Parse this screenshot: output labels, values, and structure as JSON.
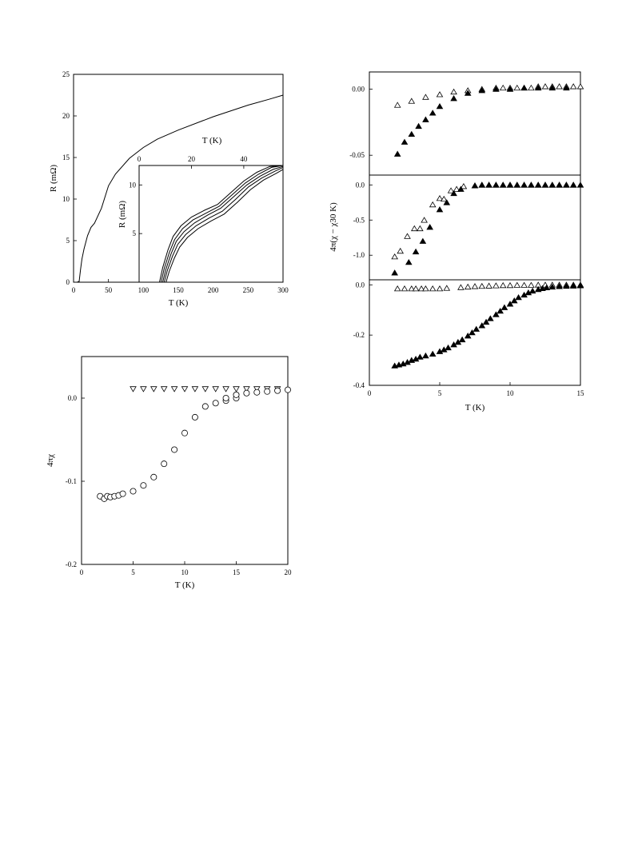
{
  "colors": {
    "ink": "#000000",
    "background": "#ffffff"
  },
  "chart_data": [
    {
      "id": "resistance",
      "type": "line",
      "xlabel": "T (K)",
      "ylabel": "R (mΩ)",
      "xlim": [
        0,
        300
      ],
      "ylim": [
        0,
        25
      ],
      "xticks": [
        0,
        50,
        100,
        150,
        200,
        250,
        300
      ],
      "yticks": [
        0,
        5,
        10,
        15,
        20,
        25
      ],
      "grid": false,
      "series": [
        {
          "x": [
            0,
            5,
            8,
            10,
            12,
            15,
            20,
            25,
            30,
            40,
            50,
            60,
            80,
            100,
            120,
            150,
            200,
            250,
            280,
            300
          ],
          "y": [
            0,
            0,
            0.1,
            1.5,
            2.8,
            4.0,
            5.6,
            6.6,
            7.1,
            8.9,
            11.6,
            13.0,
            14.9,
            16.2,
            17.2,
            18.3,
            19.9,
            21.3,
            22.0,
            22.5
          ]
        }
      ],
      "inset": {
        "type": "line",
        "xlabel": "T (K)",
        "ylabel": "R (mΩ)",
        "xlim": [
          0,
          55
        ],
        "ylim": [
          0,
          12
        ],
        "xticks": [
          0,
          20,
          40
        ],
        "yticks": [
          5,
          10
        ],
        "xaxis_position": "top",
        "series": [
          {
            "x": [
              7.8,
              9,
              11,
              13,
              16,
              20,
              25,
              30,
              35,
              40,
              45,
              50,
              55
            ],
            "y": [
              0,
              1.5,
              3.3,
              4.7,
              5.8,
              6.7,
              7.4,
              8.0,
              9.2,
              10.4,
              11.3,
              11.9,
              12.0
            ]
          },
          {
            "x": [
              8.4,
              9.6,
              11.6,
              13.6,
              16.6,
              20.6,
              25.6,
              30.6,
              35.6,
              40.6,
              45.6,
              50.6,
              55
            ],
            "y": [
              0,
              1.4,
              3.1,
              4.4,
              5.5,
              6.4,
              7.1,
              7.8,
              9.0,
              10.2,
              11.1,
              11.8,
              12.0
            ]
          },
          {
            "x": [
              9.0,
              10.2,
              12.2,
              14.2,
              17.2,
              21.2,
              26.2,
              31.2,
              36.2,
              41.2,
              46.2,
              51.2,
              55
            ],
            "y": [
              0,
              1.3,
              2.9,
              4.2,
              5.2,
              6.1,
              6.9,
              7.6,
              8.8,
              10.0,
              10.9,
              11.6,
              11.9
            ]
          },
          {
            "x": [
              9.6,
              10.8,
              12.8,
              14.8,
              17.8,
              21.8,
              26.8,
              31.8,
              36.8,
              41.8,
              46.8,
              51.8,
              55
            ],
            "y": [
              0,
              1.2,
              2.7,
              3.9,
              4.9,
              5.8,
              6.6,
              7.3,
              8.5,
              9.8,
              10.7,
              11.4,
              11.8
            ]
          },
          {
            "x": [
              10.3,
              11.5,
              13.5,
              15.5,
              18.5,
              22.5,
              27.5,
              32.5,
              37.5,
              42.5,
              47.5,
              52.5,
              55
            ],
            "y": [
              0,
              1.1,
              2.5,
              3.6,
              4.6,
              5.5,
              6.3,
              7.0,
              8.2,
              9.5,
              10.5,
              11.2,
              11.6
            ]
          }
        ]
      }
    },
    {
      "id": "chi-stack",
      "type": "scatter",
      "xlabel": "T (K)",
      "ylabel": "4π(χ − χ30 K)",
      "xlim": [
        0,
        15
      ],
      "xticks": [
        0,
        5,
        10,
        15
      ],
      "grid": false,
      "panels": [
        {
          "ylim": [
            -0.065,
            0.013
          ],
          "yticks": [
            0.0,
            -0.05
          ],
          "ytick_labels": [
            "0.00",
            "-0.05"
          ],
          "series": [
            {
              "marker": "triangle-up-open",
              "x": [
                2.0,
                3.0,
                4.0,
                5.0,
                6.0,
                7.0,
                8.0,
                9.0,
                9.5,
                10.0,
                10.5,
                11.0,
                11.5,
                12.0,
                12.5,
                13.0,
                13.5,
                14.0,
                14.5,
                15.0
              ],
              "y": [
                -0.012,
                -0.009,
                -0.006,
                -0.004,
                -0.002,
                -0.001,
                0.0,
                0.001,
                0.001,
                0.001,
                0.001,
                0.001,
                0.001,
                0.002,
                0.002,
                0.002,
                0.002,
                0.002,
                0.002,
                0.002
              ]
            },
            {
              "marker": "triangle-up-filled",
              "x": [
                2.0,
                2.5,
                3.0,
                3.5,
                4.0,
                4.5,
                5.0,
                6.0,
                7.0,
                8.0,
                9.0,
                10.0,
                11.0,
                12.0,
                13.0,
                14.0
              ],
              "y": [
                -0.049,
                -0.04,
                -0.034,
                -0.028,
                -0.023,
                -0.018,
                -0.013,
                -0.007,
                -0.003,
                -0.001,
                0.0,
                0.0,
                0.001,
                0.001,
                0.001,
                0.001
              ]
            }
          ]
        },
        {
          "ylim": [
            -1.35,
            0.14
          ],
          "yticks": [
            0.0,
            -0.5,
            -1.0
          ],
          "ytick_labels": [
            "0.0",
            "-0.5",
            "-1.0"
          ],
          "series": [
            {
              "marker": "triangle-up-open",
              "x": [
                1.8,
                2.2,
                2.7,
                3.2,
                3.6,
                3.9,
                4.5,
                5.0,
                5.3,
                5.8,
                6.2,
                6.7,
                7.5,
                8.0,
                8.5,
                9.0,
                9.5,
                10.0,
                10.5,
                11.0,
                11.5,
                12.0,
                12.5,
                13.0,
                13.5,
                14.0,
                14.5
              ],
              "y": [
                -1.02,
                -0.94,
                -0.73,
                -0.62,
                -0.62,
                -0.5,
                -0.28,
                -0.19,
                -0.2,
                -0.08,
                -0.06,
                -0.02,
                -0.01,
                0.0,
                0.0,
                0.0,
                0.0,
                0.0,
                0.0,
                0.0,
                0.0,
                0.0,
                0.0,
                0.0,
                0.0,
                0.0,
                0.0
              ]
            },
            {
              "marker": "triangle-up-filled",
              "x": [
                1.8,
                2.8,
                3.3,
                3.8,
                4.3,
                5.0,
                5.5,
                6.0,
                6.5,
                7.5,
                8.0,
                8.5,
                9.0,
                9.5,
                10.0,
                10.5,
                11.0,
                11.5,
                12.0,
                12.5,
                13.0,
                13.5,
                14.0,
                14.5,
                15.0
              ],
              "y": [
                -1.25,
                -1.1,
                -0.95,
                -0.8,
                -0.6,
                -0.35,
                -0.25,
                -0.12,
                -0.06,
                -0.01,
                0.0,
                0.0,
                0.0,
                0.0,
                0.0,
                0.0,
                0.0,
                0.0,
                0.0,
                0.0,
                0.0,
                0.0,
                0.0,
                0.0,
                0.0
              ]
            }
          ]
        },
        {
          "ylim": [
            -0.4,
            0.02
          ],
          "yticks": [
            0.0,
            -0.2,
            -0.4
          ],
          "ytick_labels": [
            "0.0",
            "-0.2",
            "-0.4"
          ],
          "series": [
            {
              "marker": "triangle-up-open",
              "x": [
                2.0,
                2.5,
                3.0,
                3.3,
                3.7,
                4.0,
                4.5,
                5.0,
                5.5,
                6.5,
                7.0,
                7.5,
                8.0,
                8.5,
                9.0,
                9.5,
                10.0,
                10.5,
                11.0,
                11.5,
                12.0,
                12.5,
                13.0,
                13.5,
                14.0,
                14.5,
                15.0
              ],
              "y": [
                -0.015,
                -0.015,
                -0.015,
                -0.015,
                -0.015,
                -0.015,
                -0.015,
                -0.015,
                -0.013,
                -0.01,
                -0.008,
                -0.006,
                -0.005,
                -0.004,
                -0.003,
                -0.002,
                -0.002,
                -0.001,
                -0.001,
                -0.001,
                0.0,
                0.0,
                0.0,
                0.0,
                0.0,
                0.0,
                0.0
              ]
            },
            {
              "marker": "triangle-up-filled",
              "x": [
                1.8,
                2.1,
                2.4,
                2.7,
                3.0,
                3.3,
                3.6,
                4.0,
                4.5,
                5.0,
                5.3,
                5.6,
                6.0,
                6.3,
                6.6,
                7.0,
                7.3,
                7.6,
                8.0,
                8.3,
                8.6,
                9.0,
                9.3,
                9.6,
                10.0,
                10.3,
                10.6,
                11.0,
                11.3,
                11.6,
                12.0,
                12.3,
                12.6,
                13.0,
                13.5,
                14.0,
                14.5,
                15.0
              ],
              "y": [
                -0.322,
                -0.318,
                -0.314,
                -0.308,
                -0.3,
                -0.295,
                -0.287,
                -0.282,
                -0.275,
                -0.265,
                -0.258,
                -0.25,
                -0.238,
                -0.228,
                -0.218,
                -0.203,
                -0.19,
                -0.176,
                -0.162,
                -0.148,
                -0.134,
                -0.118,
                -0.104,
                -0.09,
                -0.076,
                -0.063,
                -0.05,
                -0.04,
                -0.031,
                -0.024,
                -0.018,
                -0.014,
                -0.011,
                -0.008,
                -0.006,
                -0.005,
                -0.004,
                -0.003
              ]
            }
          ]
        }
      ]
    },
    {
      "id": "chi",
      "type": "scatter",
      "xlabel": "T (K)",
      "ylabel": "4πχ",
      "xlim": [
        0,
        20
      ],
      "ylim": [
        -0.2,
        0.05
      ],
      "xticks": [
        0,
        5,
        10,
        15,
        20
      ],
      "yticks": [
        0.0,
        -0.1,
        -0.2
      ],
      "ytick_labels": [
        "0.0",
        "-0.1",
        "-0.2"
      ],
      "grid": false,
      "series": [
        {
          "marker": "triangle-down-open",
          "x": [
            5.0,
            6.0,
            7.0,
            8.0,
            9.0,
            10.0,
            11.0,
            12.0,
            13.0,
            14.0,
            15.0,
            16.0,
            17.0,
            18.0,
            19.0
          ],
          "y": [
            0.011,
            0.011,
            0.011,
            0.011,
            0.011,
            0.011,
            0.011,
            0.011,
            0.011,
            0.011,
            0.011,
            0.011,
            0.011,
            0.011,
            0.011
          ]
        },
        {
          "marker": "circle-open",
          "x": [
            1.8,
            2.2,
            2.5,
            2.8,
            3.2,
            3.6,
            4.0,
            5.0,
            6.0,
            7.0,
            8.0,
            9.0,
            10.0,
            11.0,
            12.0,
            13.0,
            14.0,
            14.0,
            15.0,
            15.0,
            16.0,
            17.0,
            18.0,
            19.0,
            20.0
          ],
          "y": [
            -0.118,
            -0.121,
            -0.118,
            -0.119,
            -0.118,
            -0.117,
            -0.115,
            -0.112,
            -0.105,
            -0.095,
            -0.079,
            -0.062,
            -0.042,
            -0.023,
            -0.01,
            -0.006,
            -0.003,
            0.0,
            0.0,
            0.004,
            0.006,
            0.007,
            0.008,
            0.009,
            0.01
          ]
        }
      ]
    }
  ]
}
